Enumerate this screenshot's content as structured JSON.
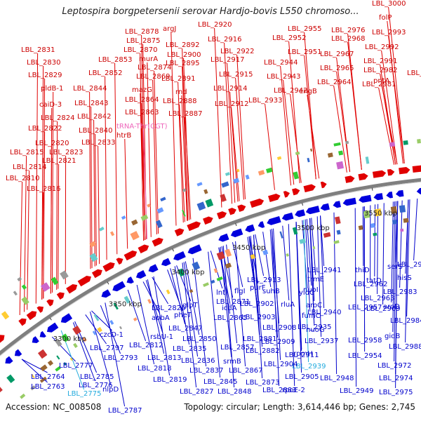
{
  "title": "Leptospira borgpetersenii serovar Hardjo-bovis L550 chromoso...",
  "footer": {
    "accession": "Accession: NC_008508",
    "topology": "Topology: circular; Length: 3,614,446 bp; Genes: 2,745"
  },
  "colors": {
    "forward": "#e00000",
    "reverse": "#0000dd",
    "trna": "#ee88cc",
    "backbone": "#7f7f7f",
    "label_red": "#cc0000",
    "label_blue": "#0000cc",
    "label_cyan": "#22aadd",
    "label_pink": "#ee66bb"
  },
  "scale_labels": [
    "3300 kbp",
    "3350 kbp",
    "3400 kbp",
    "3450 kbp",
    "3500 kbp",
    "3550 kbp"
  ],
  "top_labels": [
    "LBL_2831",
    "LBL_2830",
    "LBL_2829",
    "pldB-1",
    "caiD-3",
    "LBL_2824",
    "LBL_2822",
    "LBL_2820",
    "LBL_2815",
    "LBL_2823",
    "LBL_2821",
    "LBL_2814",
    "LBL_2810",
    "LBL_2816",
    "LBL_2844",
    "LBL_2843",
    "LBL_2842",
    "LBL_2840",
    "LBL_2833",
    "LBL_2853",
    "LBL_2852",
    "LBL_2878",
    "LBL_2875",
    "LBL_2870",
    "murA",
    "LBL_2874",
    "LBL_2869",
    "mazG",
    "LBL_2864",
    "LBL_2863",
    "htrB",
    "tRNA-Thr(CGT)",
    "argJ",
    "LBL_2892",
    "LBL_2900",
    "LBL_2895",
    "LBL_2891",
    "rnd",
    "LBL_2888",
    "LBL_2887",
    "LBL_2920",
    "LBL_2916",
    "LBL_2922",
    "LBL_2917",
    "LBL_2915",
    "LBL_2914",
    "LBL_2912",
    "LBL_2933",
    "LBL_2955",
    "LBL_2952",
    "LBL_2951",
    "LBL_2944",
    "LBL_2943",
    "LBL_2942",
    "engB",
    "LBL_2976",
    "LBL_2968",
    "LBL_2967",
    "LBL_2965",
    "LBL_2964",
    "LBL_2982",
    "LBL_2981",
    "LBL_3000",
    "folP",
    "LBL_2993",
    "LBL_2992",
    "LBL_2991",
    "pntA",
    "LBL_3006"
  ],
  "bottom_labels": [
    "LBL_2995",
    "hisS",
    "serS",
    "tatD",
    "LBL_2983",
    "aroD",
    "thiD",
    "LBL_2962",
    "LBL_2963",
    "LBL_2969",
    "LBL_2984",
    "gidB",
    "LBL_2988",
    "LBL_2941",
    "trmE",
    "nuoI",
    "yidC",
    "aroC",
    "LBL_2940",
    "fumC",
    "nuoG",
    "LBL_2935",
    "LBL_2957",
    "LBL_2937",
    "LBL_2958",
    "rpmH",
    "LBL_2954",
    "LBL_2939",
    "LBL_2972",
    "LBL_2974",
    "LBL_2948",
    "LBL_2949",
    "LBL_2975",
    "purF",
    "LBL_2913",
    "flgI",
    "suhB",
    "rluA",
    "LBL_2902",
    "LBL_2903",
    "LBL_2908",
    "LBL_2909",
    "LBL_2911",
    "LBL_2904",
    "LBL_2905",
    "rpoE-2",
    "LBL_2883",
    "lnt",
    "LBL_2871",
    "glpT",
    "pheT",
    "LBL_2865",
    "icdA",
    "LBL_2881",
    "LBL_2882",
    "LBL_2857",
    "srmB",
    "LBL_2867",
    "LBL_2873",
    "apbA",
    "LBL_2826",
    "rsbU-1",
    "LBL_2847",
    "LBL_2850",
    "LBL_2835",
    "LBL_2836",
    "LBL_2837",
    "LBL_2845",
    "LBL_2848",
    "LBL_2827",
    "czcD-1",
    "LBL_2797",
    "LBL_2793",
    "LBL_2812",
    "LBL_2813",
    "LBL_2818",
    "LBL_2819",
    "LBL_2777",
    "LBL_2764",
    "LBL_2785",
    "LBL_2763",
    "LBL_2776",
    "nlpD",
    "LBL_2775",
    "LBL_2787"
  ]
}
